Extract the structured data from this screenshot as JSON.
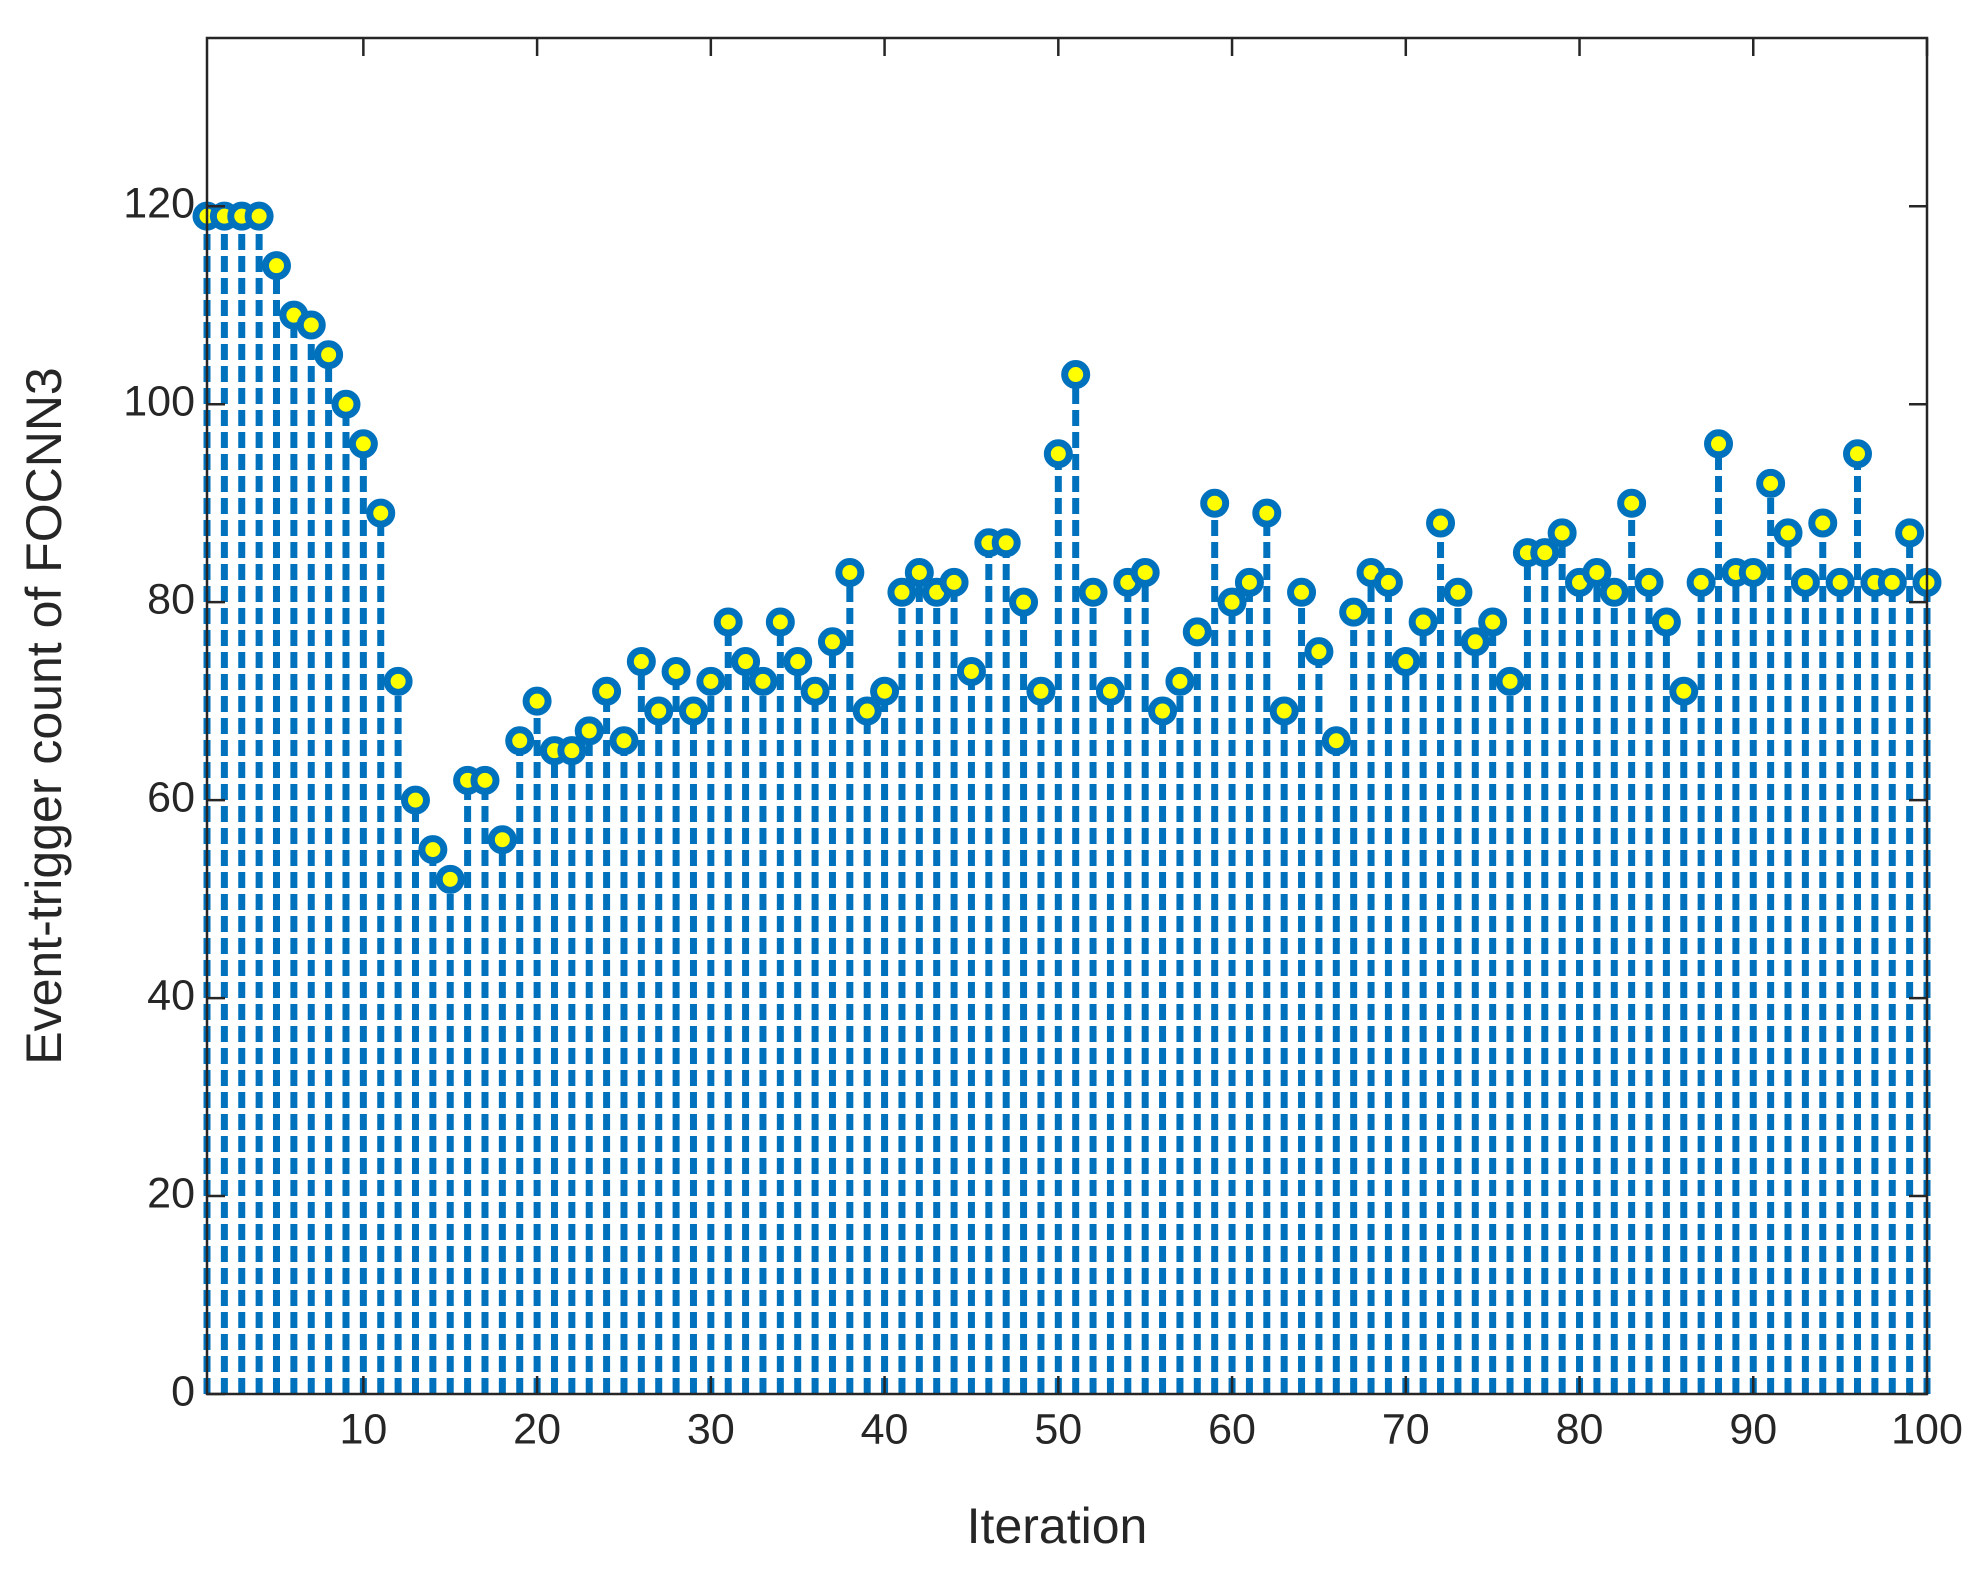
{
  "chart_data": {
    "type": "stem",
    "xlabel": "Iteration",
    "ylabel": "Event-trigger count of FOCNN3",
    "x": [
      1,
      2,
      3,
      4,
      5,
      6,
      7,
      8,
      9,
      10,
      11,
      12,
      13,
      14,
      15,
      16,
      17,
      18,
      19,
      20,
      21,
      22,
      23,
      24,
      25,
      26,
      27,
      28,
      29,
      30,
      31,
      32,
      33,
      34,
      35,
      36,
      37,
      38,
      39,
      40,
      41,
      42,
      43,
      44,
      45,
      46,
      47,
      48,
      49,
      50,
      51,
      52,
      53,
      54,
      55,
      56,
      57,
      58,
      59,
      60,
      61,
      62,
      63,
      64,
      65,
      66,
      67,
      68,
      69,
      70,
      71,
      72,
      73,
      74,
      75,
      76,
      77,
      78,
      79,
      80,
      81,
      82,
      83,
      84,
      85,
      86,
      87,
      88,
      89,
      90,
      91,
      92,
      93,
      94,
      95,
      96,
      97,
      98,
      99,
      100
    ],
    "values": [
      119,
      119,
      119,
      119,
      114,
      109,
      108,
      105,
      100,
      96,
      89,
      72,
      60,
      55,
      52,
      62,
      62,
      56,
      66,
      70,
      65,
      65,
      67,
      71,
      66,
      74,
      69,
      73,
      69,
      72,
      78,
      74,
      72,
      78,
      74,
      71,
      76,
      83,
      69,
      71,
      81,
      83,
      81,
      82,
      73,
      86,
      86,
      80,
      71,
      95,
      103,
      81,
      71,
      82,
      83,
      69,
      72,
      77,
      90,
      80,
      82,
      89,
      69,
      81,
      75,
      66,
      79,
      83,
      82,
      74,
      78,
      88,
      81,
      76,
      78,
      72,
      85,
      85,
      87,
      82,
      83,
      81,
      90,
      82,
      78,
      71,
      82,
      96,
      83,
      83,
      92,
      87,
      82,
      88,
      82,
      95,
      82,
      82,
      87,
      82
    ],
    "color": "#0072bd",
    "marker_face": "#ffff00",
    "xlim": [
      1,
      100
    ],
    "ylim": [
      0,
      137
    ],
    "xticks": [
      10,
      20,
      30,
      40,
      50,
      60,
      70,
      80,
      90,
      100
    ],
    "yticks": [
      0,
      20,
      40,
      60,
      80,
      100,
      120
    ]
  }
}
